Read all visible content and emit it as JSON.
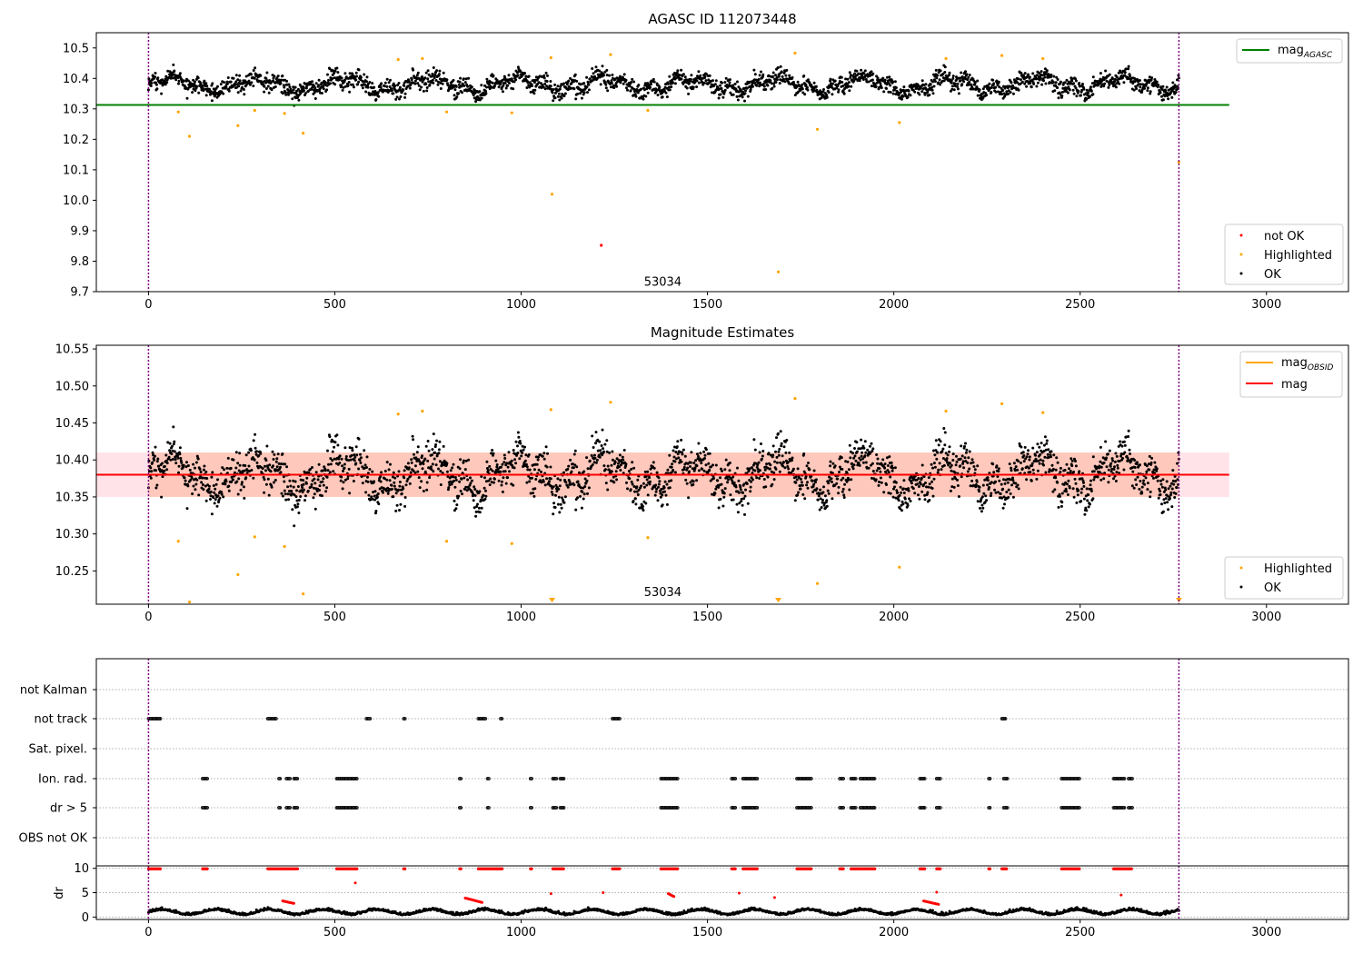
{
  "chart_data": [
    {
      "type": "scatter",
      "title": "AGASC ID 112073448",
      "xlim": [
        -140,
        3220
      ],
      "ylim": [
        9.7,
        10.55
      ],
      "x_ticks": [
        0,
        500,
        1000,
        1500,
        2000,
        2500,
        3000
      ],
      "y_ticks": [
        9.7,
        9.8,
        9.9,
        10.0,
        10.1,
        10.2,
        10.3,
        10.4,
        10.5
      ],
      "y_tick_labels": [
        "9.7",
        "9.8",
        "9.9",
        "10.0",
        "10.1",
        "10.2",
        "10.3",
        "10.4",
        "10.5"
      ],
      "annotation": {
        "text": "53034",
        "x": 1380,
        "y": 9.72
      },
      "vlines": [
        0,
        2765
      ],
      "hline": {
        "y": 10.313,
        "x": [
          -140,
          2900
        ],
        "color": "#008000"
      },
      "legend_top": [
        {
          "label": "mag",
          "sub": "AGASC",
          "color": "#008000"
        }
      ],
      "legend_bottom": [
        {
          "label": "not OK",
          "color": "#ff0000"
        },
        {
          "label": "Highlighted",
          "color": "#ffa500"
        },
        {
          "label": "OK",
          "color": "#000000"
        }
      ],
      "series": [
        {
          "name": "OK",
          "color": "#000000",
          "generated": {
            "n": 2400,
            "x": [
              0,
              2765
            ],
            "center": 10.38,
            "spread": 0.05
          }
        },
        {
          "name": "Highlighted",
          "color": "#ffa500",
          "points": [
            [
              80,
              10.29
            ],
            [
              110,
              10.21
            ],
            [
              240,
              10.245
            ],
            [
              285,
              10.295
            ],
            [
              365,
              10.285
            ],
            [
              415,
              10.22
            ],
            [
              670,
              10.462
            ],
            [
              735,
              10.465
            ],
            [
              800,
              10.29
            ],
            [
              975,
              10.287
            ],
            [
              1080,
              10.468
            ],
            [
              1083,
              10.02
            ],
            [
              1240,
              10.478
            ],
            [
              1340,
              10.295
            ],
            [
              1690,
              9.765
            ],
            [
              1735,
              10.483
            ],
            [
              1795,
              10.233
            ],
            [
              2015,
              10.255
            ],
            [
              2140,
              10.465
            ],
            [
              2290,
              10.475
            ],
            [
              2400,
              10.465
            ],
            [
              2765,
              10.125
            ]
          ]
        },
        {
          "name": "not OK",
          "color": "#ff0000",
          "points": [
            [
              1215,
              9.852
            ]
          ]
        }
      ]
    },
    {
      "type": "scatter",
      "title": "Magnitude Estimates",
      "xlim": [
        -140,
        3220
      ],
      "ylim": [
        10.205,
        10.555
      ],
      "x_ticks": [
        0,
        500,
        1000,
        1500,
        2000,
        2500,
        3000
      ],
      "y_ticks": [
        10.25,
        10.3,
        10.35,
        10.4,
        10.45,
        10.5,
        10.55
      ],
      "y_tick_labels": [
        "10.25",
        "10.30",
        "10.35",
        "10.40",
        "10.45",
        "10.50",
        "10.55"
      ],
      "annotation": {
        "text": "53034",
        "x": 1380,
        "y": 10.216
      },
      "vlines": [
        0,
        2765
      ],
      "band_outer": {
        "y": [
          10.35,
          10.41
        ],
        "x": [
          -140,
          2900
        ],
        "color": "#ffc0cb"
      },
      "band_inner": {
        "y": [
          10.35,
          10.41
        ],
        "x": [
          0,
          2765
        ],
        "color": "#ffa07a"
      },
      "line_obsid": {
        "y": 10.38,
        "x": [
          0,
          2765
        ],
        "color": "#ffa500"
      },
      "line_mag": {
        "y": 10.38,
        "x": [
          -140,
          2900
        ],
        "color": "#ff0000"
      },
      "legend_top": [
        {
          "label": "mag",
          "sub": "OBSID",
          "color": "#ffa500"
        },
        {
          "label": "mag",
          "sub": "",
          "color": "#ff0000"
        }
      ],
      "legend_bottom": [
        {
          "label": "Highlighted",
          "color": "#ffa500"
        },
        {
          "label": "OK",
          "color": "#000000"
        }
      ],
      "series": [
        {
          "name": "OK",
          "color": "#000000",
          "generated": {
            "n": 2400,
            "x": [
              0,
              2765
            ],
            "center": 10.38,
            "spread": 0.05
          }
        },
        {
          "name": "Highlighted",
          "color": "#ffa500",
          "points": [
            [
              80,
              10.29
            ],
            [
              110,
              10.208
            ],
            [
              240,
              10.245
            ],
            [
              285,
              10.296
            ],
            [
              365,
              10.283
            ],
            [
              415,
              10.219
            ],
            [
              670,
              10.462
            ],
            [
              735,
              10.466
            ],
            [
              800,
              10.29
            ],
            [
              975,
              10.287
            ],
            [
              1080,
              10.468
            ],
            [
              1240,
              10.478
            ],
            [
              1340,
              10.295
            ],
            [
              1735,
              10.483
            ],
            [
              1795,
              10.233
            ],
            [
              2015,
              10.255
            ],
            [
              2140,
              10.466
            ],
            [
              2290,
              10.476
            ],
            [
              2400,
              10.464
            ]
          ]
        },
        {
          "name": "Highlighted (off-scale)",
          "color": "#ffa500",
          "marker": "triangle-down",
          "points": [
            [
              1083,
              10.205
            ],
            [
              1690,
              10.205
            ],
            [
              2765,
              10.205
            ]
          ]
        }
      ]
    },
    {
      "type": "scatter",
      "title": "",
      "xlim": [
        -140,
        3220
      ],
      "categories": [
        "not Kalman",
        "not track",
        "Sat. pixel.",
        "Ion. rad.",
        "dr > 5",
        "OBS not OK"
      ],
      "vlines": [
        0,
        2765
      ],
      "flags": {
        "not track": [
          [
            0,
            35
          ],
          [
            320,
            345
          ],
          [
            585,
            595
          ],
          [
            685,
            690
          ],
          [
            885,
            905
          ],
          [
            945,
            950
          ],
          [
            1245,
            1265
          ],
          [
            2290,
            2300
          ]
        ],
        "Ion. rad.": [
          [
            145,
            160
          ],
          [
            350,
            355
          ],
          [
            370,
            380
          ],
          [
            390,
            400
          ],
          [
            505,
            560
          ],
          [
            835,
            840
          ],
          [
            910,
            915
          ],
          [
            1025,
            1030
          ],
          [
            1085,
            1095
          ],
          [
            1105,
            1115
          ],
          [
            1375,
            1420
          ],
          [
            1565,
            1575
          ],
          [
            1595,
            1635
          ],
          [
            1740,
            1780
          ],
          [
            1855,
            1865
          ],
          [
            1885,
            1900
          ],
          [
            1910,
            1950
          ],
          [
            2070,
            2085
          ],
          [
            2115,
            2125
          ],
          [
            2255,
            2260
          ],
          [
            2295,
            2305
          ],
          [
            2450,
            2500
          ],
          [
            2590,
            2620
          ],
          [
            2630,
            2640
          ]
        ],
        "dr > 5": [
          [
            145,
            160
          ],
          [
            350,
            355
          ],
          [
            370,
            380
          ],
          [
            390,
            400
          ],
          [
            505,
            560
          ],
          [
            835,
            840
          ],
          [
            910,
            915
          ],
          [
            1025,
            1030
          ],
          [
            1085,
            1095
          ],
          [
            1105,
            1115
          ],
          [
            1375,
            1420
          ],
          [
            1565,
            1575
          ],
          [
            1595,
            1635
          ],
          [
            1740,
            1780
          ],
          [
            1855,
            1865
          ],
          [
            1885,
            1900
          ],
          [
            1910,
            1950
          ],
          [
            2070,
            2085
          ],
          [
            2115,
            2125
          ],
          [
            2255,
            2260
          ],
          [
            2295,
            2305
          ],
          [
            2450,
            2500
          ],
          [
            2590,
            2620
          ],
          [
            2630,
            2640
          ]
        ]
      }
    },
    {
      "type": "scatter",
      "title": "",
      "ylabel": "dr",
      "xlim": [
        -140,
        3220
      ],
      "ylim": [
        -0.5,
        10.5
      ],
      "x_ticks": [
        0,
        500,
        1000,
        1500,
        2000,
        2500,
        3000
      ],
      "y_ticks": [
        0,
        5,
        10
      ],
      "y_tick_labels": [
        "0",
        "5",
        "10"
      ],
      "vlines": [
        0,
        2765
      ],
      "red_top_ranges": [
        [
          0,
          35
        ],
        [
          145,
          160
        ],
        [
          320,
          400
        ],
        [
          505,
          560
        ],
        [
          685,
          690
        ],
        [
          835,
          840
        ],
        [
          885,
          950
        ],
        [
          1025,
          1030
        ],
        [
          1085,
          1115
        ],
        [
          1245,
          1265
        ],
        [
          1375,
          1420
        ],
        [
          1565,
          1575
        ],
        [
          1595,
          1635
        ],
        [
          1740,
          1780
        ],
        [
          1855,
          1865
        ],
        [
          1885,
          1950
        ],
        [
          2070,
          2085
        ],
        [
          2115,
          2125
        ],
        [
          2255,
          2260
        ],
        [
          2290,
          2305
        ],
        [
          2450,
          2500
        ],
        [
          2590,
          2640
        ]
      ],
      "red_points": [
        [
          555,
          7.0
        ],
        [
          1080,
          4.8
        ],
        [
          1220,
          5.0
        ],
        [
          1585,
          4.9
        ],
        [
          1680,
          4.0
        ],
        [
          2115,
          5.1
        ],
        [
          2610,
          4.5
        ]
      ],
      "red_clusters": [
        [
          360,
          390,
          2.8,
          3.3
        ],
        [
          850,
          895,
          3.0,
          3.9
        ],
        [
          1395,
          1410,
          4.2,
          4.8
        ],
        [
          2080,
          2120,
          2.6,
          3.3
        ]
      ]
    }
  ]
}
